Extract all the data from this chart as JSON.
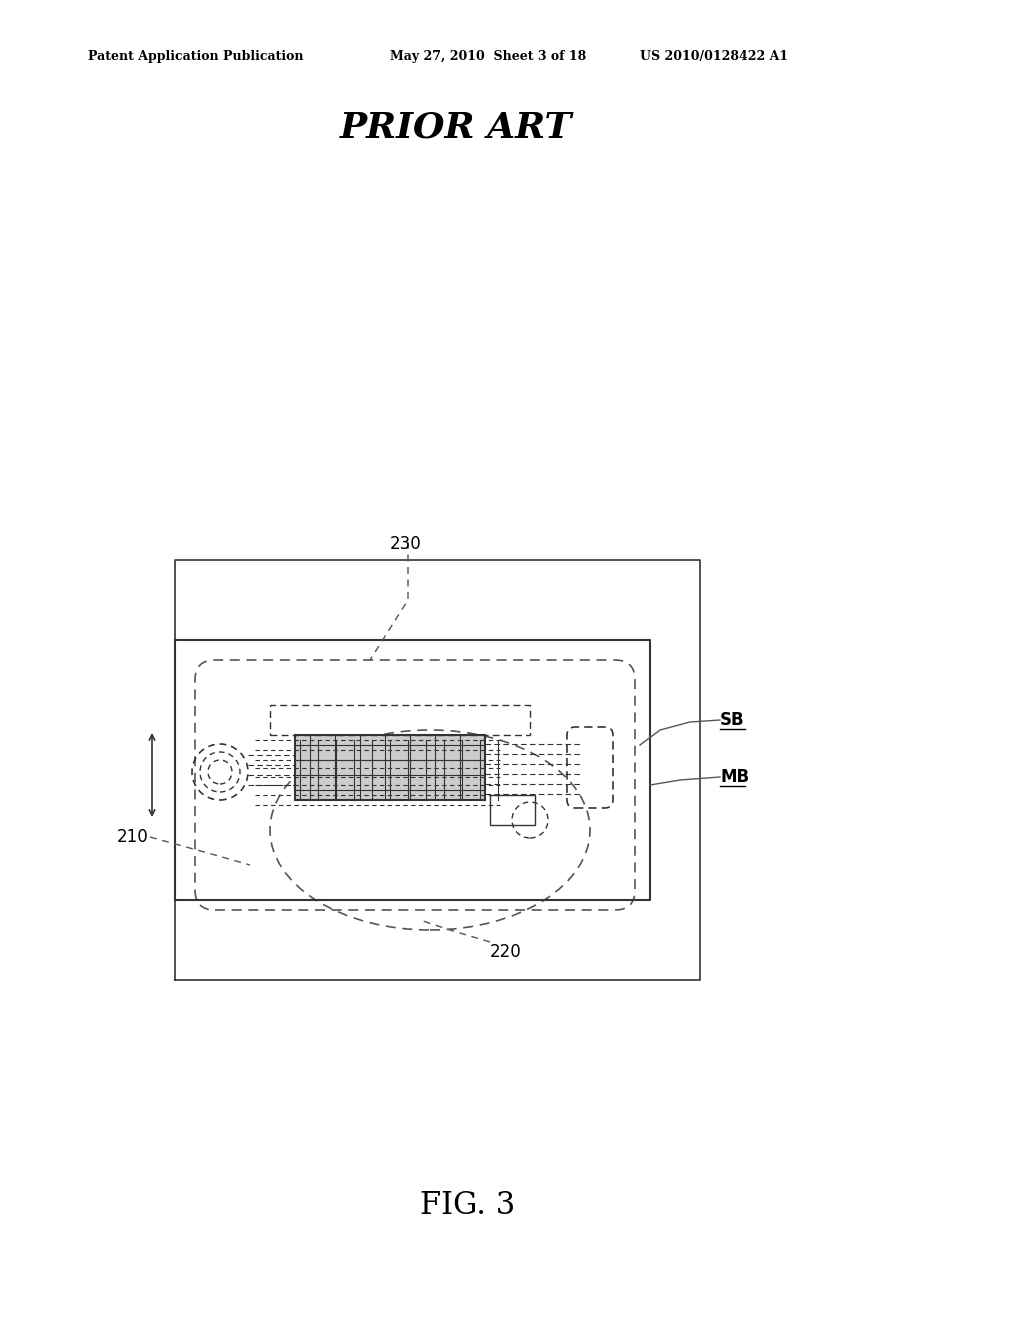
{
  "bg_color": "#ffffff",
  "header_left": "Patent Application Publication",
  "header_center": "May 27, 2010  Sheet 3 of 18",
  "header_right": "US 2010/0128422 A1",
  "prior_art_text": "PRIOR ART",
  "fig_label": "FIG. 3",
  "label_230": "230",
  "label_210": "210",
  "label_220": "220",
  "label_SB": "SB",
  "label_MB": "MB",
  "line_color": "#333333",
  "dashed_color": "#555555"
}
